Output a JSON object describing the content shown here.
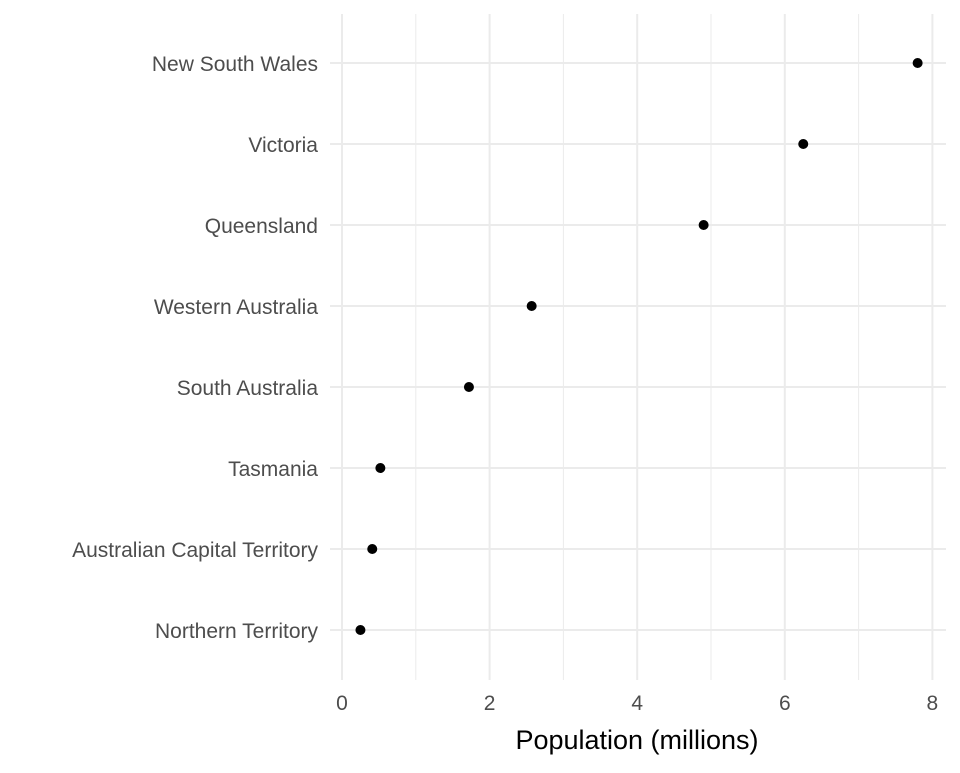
{
  "chart_data": {
    "type": "scatter",
    "title": "",
    "xlabel": "Population (millions)",
    "ylabel": "",
    "xlim": [
      0,
      8
    ],
    "x_ticks": [
      0,
      2,
      4,
      6,
      8
    ],
    "x_tick_labels": [
      "0",
      "2",
      "4",
      "6",
      "8"
    ],
    "grid": true,
    "legend": "none",
    "point_color": "#000000",
    "categories": [
      "New South Wales",
      "Victoria",
      "Queensland",
      "Western Australia",
      "South Australia",
      "Tasmania",
      "Australian Capital Territory",
      "Northern Territory"
    ],
    "values": [
      7.8,
      6.25,
      4.9,
      2.57,
      1.72,
      0.52,
      0.41,
      0.25
    ]
  }
}
